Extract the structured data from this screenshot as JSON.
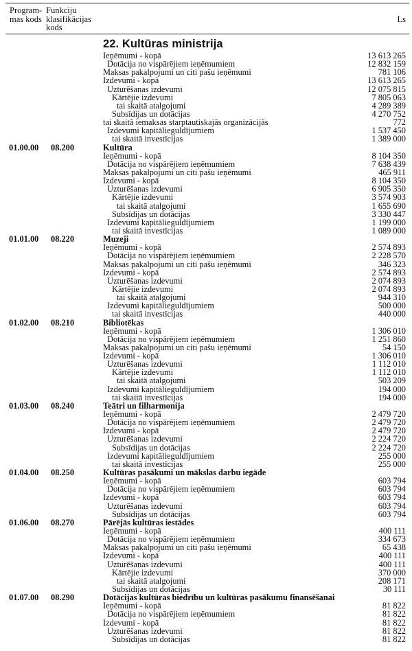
{
  "header": {
    "col1": [
      "Program-",
      "mas kods"
    ],
    "col2": [
      "Funkciju",
      "klasifikācijas",
      "kods"
    ],
    "unit": "Ls"
  },
  "ministry_title": "22.  Kultūras ministrija",
  "sections": [
    {
      "code": "",
      "func": "",
      "title": "",
      "rows": [
        {
          "label": "Ieņēmumi - kopā",
          "value": "13 613 265",
          "level": 0
        },
        {
          "label": "Dotācija no vispārējiem ieņēmumiem",
          "value": "12 832 159",
          "level": 1
        },
        {
          "label": "Maksas pakalpojumi un citi pašu ieņēmumi",
          "value": "781 106",
          "level": 0
        },
        {
          "label": "Izdevumi - kopā",
          "value": "13 613 265",
          "level": 0
        },
        {
          "label": "Uzturēšanas izdevumi",
          "value": "12 075 815",
          "level": 1
        },
        {
          "label": "Kārtējie izdevumi",
          "value": "7 805 063",
          "level": 2
        },
        {
          "label": "tai skaitā atalgojumi",
          "value": "4 289 389",
          "level": 3
        },
        {
          "label": "Subsīdijas un dotācijas",
          "value": "4 270 752",
          "level": 2
        },
        {
          "label": "tai skaitā iemaksas starptautiskajās organizācijās",
          "value": "772",
          "level": 0
        },
        {
          "label": "Izdevumi kapitālieguldījumiem",
          "value": "1 537 450",
          "level": 1
        },
        {
          "label": "tai skaitā investīcijas",
          "value": "1 389 000",
          "level": 2
        }
      ]
    },
    {
      "code": "01.00.00",
      "func": "08.200",
      "title": "Kultūra",
      "rows": [
        {
          "label": "Ieņēmumi - kopā",
          "value": "8 104 350",
          "level": 0
        },
        {
          "label": "Dotācija no vispārējiem ieņēmumiem",
          "value": "7 638 439",
          "level": 1
        },
        {
          "label": "Maksas pakalpojumi un citi pašu ieņēmumi",
          "value": "465 911",
          "level": 0
        },
        {
          "label": "Izdevumi - kopā",
          "value": "8 104 350",
          "level": 0
        },
        {
          "label": "Uzturēšanas izdevumi",
          "value": "6 905 350",
          "level": 1
        },
        {
          "label": "Kārtējie izdevumi",
          "value": "3 574 903",
          "level": 2
        },
        {
          "label": "tai skaitā atalgojumi",
          "value": "1 655 690",
          "level": 3
        },
        {
          "label": "Subsīdijas un dotācijas",
          "value": "3 330 447",
          "level": 2
        },
        {
          "label": "Izdevumi kapitālieguldījumiem",
          "value": "1 199 000",
          "level": 1
        },
        {
          "label": "tai skaitā investīcijas",
          "value": "1 089 000",
          "level": 2
        }
      ]
    },
    {
      "code": "01.01.00",
      "func": "08.220",
      "title": "Muzeji",
      "rows": [
        {
          "label": "Ieņēmumi - kopā",
          "value": "2 574 893",
          "level": 0
        },
        {
          "label": "Dotācija no vispārējiem ieņēmumiem",
          "value": "2 228 570",
          "level": 1
        },
        {
          "label": "Maksas pakalpojumi un citi pašu ieņēmumi",
          "value": "346 323",
          "level": 0
        },
        {
          "label": "Izdevumi - kopā",
          "value": "2 574 893",
          "level": 0
        },
        {
          "label": "Uzturēšanas izdevumi",
          "value": "2 074 893",
          "level": 1
        },
        {
          "label": "Kārtējie izdevumi",
          "value": "2 074 893",
          "level": 2
        },
        {
          "label": "tai skaitā atalgojumi",
          "value": "944 310",
          "level": 3
        },
        {
          "label": "Izdevumi kapitālieguldījumiem",
          "value": "500 000",
          "level": 1
        },
        {
          "label": "tai skaitā investīcijas",
          "value": "440 000",
          "level": 2
        }
      ]
    },
    {
      "code": "01.02.00",
      "func": "08.210",
      "title": "Bibliotēkas",
      "rows": [
        {
          "label": "Ieņēmumi - kopā",
          "value": "1 306 010",
          "level": 0
        },
        {
          "label": "Dotācija no vispārējiem ieņēmumiem",
          "value": "1 251 860",
          "level": 1
        },
        {
          "label": "Maksas pakalpojumi un citi pašu ieņēmumi",
          "value": "54 150",
          "level": 0
        },
        {
          "label": "Izdevumi - kopā",
          "value": "1 306 010",
          "level": 0
        },
        {
          "label": "Uzturēšanas izdevumi",
          "value": "1 112 010",
          "level": 1
        },
        {
          "label": "Kārtējie izdevumi",
          "value": "1 112 010",
          "level": 2
        },
        {
          "label": "tai skaitā atalgojumi",
          "value": "503 209",
          "level": 3
        },
        {
          "label": "Izdevumi kapitālieguldījumiem",
          "value": "194 000",
          "level": 1
        },
        {
          "label": "tai skaitā investīcijas",
          "value": "194 000",
          "level": 2
        }
      ]
    },
    {
      "code": "01.03.00",
      "func": "08.240",
      "title": "Teātri un filharmonija",
      "rows": [
        {
          "label": "Ieņēmumi - kopā",
          "value": "2 479 720",
          "level": 0
        },
        {
          "label": "Dotācija no vispārējiem ieņēmumiem",
          "value": "2 479 720",
          "level": 1
        },
        {
          "label": "Izdevumi - kopā",
          "value": "2 479 720",
          "level": 0
        },
        {
          "label": "Uzturēšanas izdevumi",
          "value": "2 224 720",
          "level": 1
        },
        {
          "label": "Subsīdijas un dotācijas",
          "value": "2 224 720",
          "level": 2
        },
        {
          "label": "Izdevumi kapitālieguldījumiem",
          "value": "255 000",
          "level": 1
        },
        {
          "label": "tai skaitā investīcijas",
          "value": "255 000",
          "level": 2
        }
      ]
    },
    {
      "code": "01.04.00",
      "func": "08.250",
      "title": "Kultūras pasākumi un mākslas darbu iegāde",
      "rows": [
        {
          "label": "Ieņēmumi - kopā",
          "value": "603 794",
          "level": 0
        },
        {
          "label": "Dotācija no vispārējiem ieņēmumiem",
          "value": "603 794",
          "level": 1
        },
        {
          "label": "Izdevumi - kopā",
          "value": "603 794",
          "level": 0
        },
        {
          "label": "Uzturēšanas izdevumi",
          "value": "603 794",
          "level": 1
        },
        {
          "label": "Subsīdijas un dotācijas",
          "value": "603 794",
          "level": 2
        }
      ]
    },
    {
      "code": "01.06.00",
      "func": "08.270",
      "title": "Pārējās kultūras iestādes",
      "rows": [
        {
          "label": "Ieņēmumi - kopā",
          "value": "400 111",
          "level": 0
        },
        {
          "label": "Dotācija no vispārējiem ieņēmumiem",
          "value": "334 673",
          "level": 1
        },
        {
          "label": "Maksas pakalpojumi un citi pašu ieņēmumi",
          "value": "65 438",
          "level": 0
        },
        {
          "label": "Izdevumi - kopā",
          "value": "400 111",
          "level": 0
        },
        {
          "label": "Uzturēšanas izdevumi",
          "value": "400 111",
          "level": 1
        },
        {
          "label": "Kārtējie izdevumi",
          "value": "370 000",
          "level": 2
        },
        {
          "label": "tai skaitā atalgojumi",
          "value": "208 171",
          "level": 3
        },
        {
          "label": "Subsīdijas un dotācijas",
          "value": "30 111",
          "level": 2
        }
      ]
    },
    {
      "code": "01.07.00",
      "func": "08.290",
      "title": "Dotācijas kultūras biedrību un kultūras pasākumu finansēšanai",
      "rows": [
        {
          "label": "Ieņēmumi - kopā",
          "value": "81 822",
          "level": 0
        },
        {
          "label": "Dotācija no vispārējiem ieņēmumiem",
          "value": "81 822",
          "level": 1
        },
        {
          "label": "Izdevumi - kopā",
          "value": "81 822",
          "level": 0
        },
        {
          "label": "Uzturēšanas izdevumi",
          "value": "81 822",
          "level": 1
        },
        {
          "label": "Subsīdijas un dotācijas",
          "value": "81 822",
          "level": 2
        }
      ]
    }
  ]
}
